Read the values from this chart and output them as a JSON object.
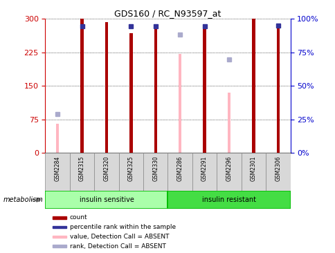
{
  "title": "GDS160 / RC_N93597_at",
  "samples": [
    "GSM2284",
    "GSM2315",
    "GSM2320",
    "GSM2325",
    "GSM2330",
    "GSM2286",
    "GSM2291",
    "GSM2296",
    "GSM2301",
    "GSM2306"
  ],
  "groups": [
    {
      "label": "insulin sensitive",
      "start": 0,
      "end": 5,
      "color": "#90EE90"
    },
    {
      "label": "insulin resistant",
      "start": 5,
      "end": 10,
      "color": "#66DD66"
    }
  ],
  "red_bars": [
    0,
    300,
    293,
    268,
    285,
    0,
    288,
    0,
    300,
    288
  ],
  "blue_squares_left": [
    0,
    283,
    0,
    283,
    284,
    0,
    283,
    0,
    0,
    285
  ],
  "pink_bars": [
    65,
    0,
    0,
    0,
    0,
    222,
    0,
    135,
    0,
    0
  ],
  "lightblue_squares_left": [
    88,
    0,
    0,
    0,
    0,
    265,
    0,
    210,
    0,
    0
  ],
  "left_ylim": [
    0,
    300
  ],
  "right_ylim": [
    0,
    100
  ],
  "left_yticks": [
    0,
    75,
    150,
    225,
    300
  ],
  "right_yticks": [
    0,
    25,
    50,
    75,
    100
  ],
  "right_yticklabels": [
    "0%",
    "25%",
    "50%",
    "75%",
    "100%"
  ],
  "left_tick_color": "#CC0000",
  "right_tick_color": "#0000CC",
  "bar_width": 0.12,
  "red_color": "#AA0000",
  "blue_color": "#333399",
  "pink_color": "#FFB6C1",
  "lightblue_color": "#AAAACC",
  "metabolism_label": "metabolism",
  "legend_items": [
    {
      "label": "count",
      "color": "#AA0000"
    },
    {
      "label": "percentile rank within the sample",
      "color": "#333399"
    },
    {
      "label": "value, Detection Call = ABSENT",
      "color": "#FFB6C1"
    },
    {
      "label": "rank, Detection Call = ABSENT",
      "color": "#AAAACC"
    }
  ]
}
